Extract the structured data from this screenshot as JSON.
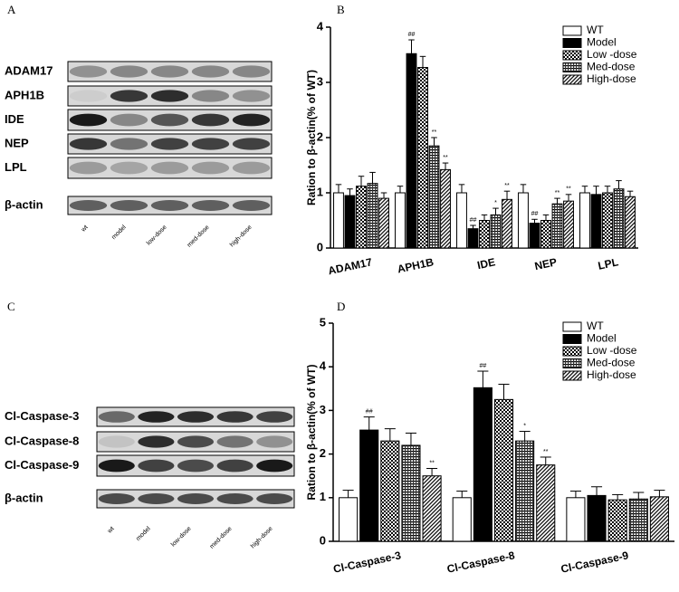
{
  "panel_labels": [
    "A",
    "B",
    "C",
    "D"
  ],
  "blots": [
    {
      "rows": [
        "ADAM17",
        "APH1B",
        "IDE",
        "NEP",
        "LPL",
        "β-actin"
      ],
      "lanes": [
        "wt",
        "model",
        "low-dose",
        "med-dose",
        "high-dose"
      ]
    },
    {
      "rows": [
        "Cl-Caspase-3",
        "Cl-Caspase-8",
        "Cl-Caspase-9",
        "β-actin"
      ],
      "lanes": [
        "wt",
        "model",
        "low-dose",
        "med-dose",
        "high-dose"
      ]
    }
  ],
  "chart_data": [
    {
      "type": "bar",
      "y_label": "Ration to β-actin(% of WT)",
      "categories": [
        "ADAM17",
        "APH1B",
        "IDE",
        "NEP",
        "LPL"
      ],
      "ylim": [
        0,
        4
      ],
      "yticks": [
        0,
        1,
        2,
        3,
        4
      ],
      "legend": "top-right",
      "series": [
        {
          "name": "WT",
          "color": "#ffffff",
          "pattern": "none",
          "values": [
            1.0,
            1.0,
            1.0,
            1.0,
            1.0
          ],
          "errors": [
            0.15,
            0.12,
            0.15,
            0.15,
            0.12
          ],
          "annotations": [
            null,
            null,
            null,
            null,
            null
          ]
        },
        {
          "name": "Model",
          "color": "#000000",
          "pattern": "solid",
          "values": [
            0.95,
            3.52,
            0.35,
            0.45,
            0.97
          ],
          "errors": [
            0.12,
            0.25,
            0.06,
            0.07,
            0.15
          ],
          "annotations": [
            null,
            "##",
            "##",
            "##",
            null
          ]
        },
        {
          "name": "Low -dose",
          "color": "#000000",
          "pattern": "checker",
          "values": [
            1.12,
            3.27,
            0.5,
            0.5,
            1.0
          ],
          "errors": [
            0.18,
            0.2,
            0.1,
            0.1,
            0.12
          ],
          "annotations": [
            null,
            null,
            null,
            null,
            null
          ]
        },
        {
          "name": "Med-dose",
          "color": "#000000",
          "pattern": "grid",
          "values": [
            1.17,
            1.85,
            0.6,
            0.8,
            1.07
          ],
          "errors": [
            0.2,
            0.15,
            0.12,
            0.1,
            0.15
          ],
          "annotations": [
            null,
            "**",
            "*",
            "**",
            null
          ]
        },
        {
          "name": "High-dose",
          "color": "#000000",
          "pattern": "diagonal",
          "values": [
            0.9,
            1.42,
            0.88,
            0.85,
            0.93
          ],
          "errors": [
            0.1,
            0.12,
            0.15,
            0.12,
            0.1
          ],
          "annotations": [
            null,
            "**",
            "**",
            "**",
            null
          ]
        }
      ]
    },
    {
      "type": "bar",
      "y_label": "Ration to β-actin(% of WT)",
      "categories": [
        "Cl-Caspase-3",
        "Cl-Caspase-8",
        "Cl-Caspase-9"
      ],
      "ylim": [
        0,
        5
      ],
      "yticks": [
        0,
        1,
        2,
        3,
        4,
        5
      ],
      "legend": "top-right",
      "series": [
        {
          "name": "WT",
          "color": "#ffffff",
          "pattern": "none",
          "values": [
            1.0,
            1.0,
            1.0
          ],
          "errors": [
            0.17,
            0.15,
            0.15
          ],
          "annotations": [
            null,
            null,
            null
          ]
        },
        {
          "name": "Model",
          "color": "#000000",
          "pattern": "solid",
          "values": [
            2.55,
            3.52,
            1.05
          ],
          "errors": [
            0.3,
            0.38,
            0.2
          ],
          "annotations": [
            "##",
            "##",
            null
          ]
        },
        {
          "name": "Low -dose",
          "color": "#000000",
          "pattern": "checker",
          "values": [
            2.3,
            3.25,
            0.95
          ],
          "errors": [
            0.28,
            0.35,
            0.12
          ],
          "annotations": [
            null,
            null,
            null
          ]
        },
        {
          "name": "Med-dose",
          "color": "#000000",
          "pattern": "grid",
          "values": [
            2.2,
            2.3,
            0.97
          ],
          "errors": [
            0.28,
            0.22,
            0.15
          ],
          "annotations": [
            null,
            "*",
            null
          ]
        },
        {
          "name": "High-dose",
          "color": "#000000",
          "pattern": "diagonal",
          "values": [
            1.5,
            1.75,
            1.02
          ],
          "errors": [
            0.17,
            0.18,
            0.15
          ],
          "annotations": [
            "**",
            "**",
            null
          ]
        }
      ]
    }
  ]
}
